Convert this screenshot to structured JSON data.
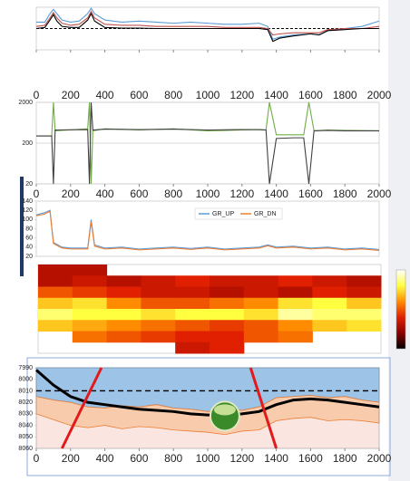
{
  "chart_data": [
    {
      "type": "line",
      "x": [
        0,
        50,
        80,
        100,
        120,
        150,
        200,
        250,
        300,
        320,
        340,
        400,
        500,
        600,
        700,
        800,
        900,
        1000,
        1100,
        1200,
        1300,
        1350,
        1380,
        1420,
        1500,
        1600,
        1650,
        1700,
        1800,
        1900,
        2000
      ],
      "series": [
        {
          "color": "#5b9bd5",
          "values": [
            0.3,
            0.3,
            0.7,
            0.9,
            0.7,
            0.4,
            0.3,
            0.35,
            0.7,
            0.95,
            0.7,
            0.4,
            0.3,
            0.35,
            0.3,
            0.25,
            0.3,
            0.25,
            0.2,
            0.2,
            0.25,
            0.1,
            -0.5,
            -0.4,
            -0.3,
            -0.25,
            -0.3,
            -0.1,
            0.0,
            0.1,
            0.35
          ]
        },
        {
          "color": "#c0504d",
          "values": [
            0.1,
            0.15,
            0.5,
            0.75,
            0.5,
            0.25,
            0.15,
            0.2,
            0.5,
            0.8,
            0.5,
            0.2,
            0.15,
            0.15,
            0.1,
            0.1,
            0.1,
            0.1,
            0.05,
            0.05,
            0.05,
            0.0,
            -0.3,
            -0.25,
            -0.2,
            -0.2,
            -0.2,
            -0.05,
            0.0,
            0.0,
            0.1
          ]
        },
        {
          "color": "#000000",
          "values": [
            0.0,
            0.05,
            0.4,
            0.65,
            0.35,
            0.1,
            0.05,
            0.05,
            0.4,
            0.7,
            0.35,
            0.05,
            0.02,
            0.02,
            0,
            0,
            0,
            0,
            0,
            0,
            0,
            -0.05,
            -0.6,
            -0.45,
            -0.35,
            -0.25,
            -0.3,
            -0.1,
            -0.05,
            0,
            0
          ]
        }
      ],
      "hline": 0,
      "xlim": [
        0,
        2000
      ],
      "ylim": [
        -1,
        1
      ],
      "xticks": [
        0,
        200,
        400,
        600,
        800,
        1000,
        1200,
        1400,
        1600,
        1800,
        2000
      ]
    },
    {
      "type": "line",
      "log_scale": true,
      "grid": true,
      "x": [
        0,
        90,
        100,
        110,
        300,
        310,
        320,
        330,
        400,
        600,
        800,
        1000,
        1200,
        1300,
        1340,
        1360,
        1400,
        1500,
        1560,
        1590,
        1620,
        1700,
        1800,
        2000
      ],
      "series": [
        {
          "color": "#70ad47",
          "values": [
            300,
            300,
            2000,
            400,
            450,
            2000,
            20,
            400,
            450,
            420,
            450,
            400,
            420,
            430,
            420,
            2000,
            320,
            320,
            320,
            2000,
            400,
            420,
            410,
            400
          ]
        },
        {
          "color": "#404040",
          "values": [
            300,
            300,
            20,
            420,
            430,
            20,
            2000,
            420,
            440,
            430,
            440,
            420,
            430,
            430,
            420,
            20,
            260,
            270,
            270,
            20,
            400,
            410,
            400,
            400
          ]
        }
      ],
      "xlim": [
        0,
        2000
      ],
      "ylim": [
        20,
        2000
      ],
      "yticks": [
        20,
        200,
        2000
      ],
      "xticks": [
        0,
        200,
        400,
        600,
        800,
        1000,
        1200,
        1400,
        1600,
        1800,
        2000
      ]
    },
    {
      "type": "line",
      "legend": "top",
      "x": [
        0,
        50,
        80,
        100,
        150,
        200,
        300,
        320,
        340,
        400,
        500,
        600,
        700,
        800,
        900,
        1000,
        1100,
        1200,
        1300,
        1350,
        1400,
        1500,
        1600,
        1700,
        1800,
        1900,
        2000
      ],
      "series": [
        {
          "name": "GR_UP",
          "color": "#5b9bd5",
          "values": [
            110,
            115,
            120,
            50,
            40,
            38,
            38,
            100,
            45,
            38,
            40,
            36,
            38,
            40,
            37,
            40,
            36,
            38,
            40,
            45,
            40,
            42,
            38,
            40,
            36,
            38,
            35
          ]
        },
        {
          "name": "GR_DN",
          "color": "#ed7d31",
          "values": [
            108,
            112,
            118,
            48,
            38,
            36,
            36,
            95,
            42,
            36,
            38,
            34,
            36,
            38,
            35,
            38,
            34,
            36,
            38,
            43,
            38,
            40,
            36,
            38,
            34,
            36,
            33
          ]
        }
      ],
      "xlim": [
        0,
        2000
      ],
      "ylim": [
        20,
        140
      ],
      "yticks": [
        20,
        40,
        60,
        80,
        100,
        120,
        140
      ]
    },
    {
      "type": "heatmap",
      "colors": [
        "#000000",
        "#8b0000",
        "#e02000",
        "#ff8c00",
        "#ffff40",
        "#ffffff"
      ],
      "values": [
        [
          0.3,
          0.3,
          null,
          null,
          null,
          null,
          null,
          null,
          null,
          null
        ],
        [
          0.3,
          0.35,
          0.3,
          0.35,
          0.4,
          0.35,
          0.35,
          0.4,
          0.35,
          0.3
        ],
        [
          0.5,
          0.45,
          0.4,
          0.35,
          0.35,
          0.3,
          0.35,
          0.3,
          0.4,
          0.35
        ],
        [
          0.7,
          0.75,
          0.6,
          0.5,
          0.5,
          0.55,
          0.6,
          0.75,
          0.8,
          0.7
        ],
        [
          0.85,
          0.8,
          0.8,
          0.75,
          0.8,
          0.8,
          0.75,
          0.9,
          0.85,
          0.85
        ],
        [
          0.7,
          0.65,
          0.6,
          0.55,
          0.5,
          0.45,
          0.5,
          0.6,
          0.7,
          0.75
        ],
        [
          null,
          0.55,
          0.5,
          0.45,
          0.4,
          0.4,
          0.5,
          0.55,
          null,
          null
        ],
        [
          null,
          null,
          null,
          null,
          0.35,
          0.4,
          null,
          null,
          null,
          null
        ]
      ]
    },
    {
      "type": "depth",
      "y_inverted": true,
      "x": [
        0,
        100,
        200,
        300,
        400,
        500,
        600,
        700,
        800,
        900,
        1000,
        1100,
        1200,
        1300,
        1400,
        1500,
        1600,
        1700,
        1800,
        1900,
        2000
      ],
      "series": [
        {
          "color": "#000000",
          "values": [
            7992,
            8005,
            8015,
            8020,
            8022,
            8024,
            8026,
            8027,
            8028,
            8030,
            8031,
            8031,
            8030,
            8028,
            8022,
            8018,
            8017,
            8018,
            8020,
            8022,
            8024
          ]
        },
        {
          "color": "#9dc3e6",
          "values": [
            8015,
            8018,
            8020,
            8024,
            8025,
            8023,
            8024,
            8022,
            8025,
            8026,
            8028,
            8026,
            8027,
            8024,
            8016,
            8015,
            8014,
            8016,
            8015,
            8018,
            8020
          ]
        },
        {
          "color": "#f8cbad",
          "values": [
            8030,
            8035,
            8040,
            8042,
            8040,
            8043,
            8041,
            8042,
            8044,
            8045,
            8046,
            8048,
            8045,
            8044,
            8036,
            8034,
            8033,
            8036,
            8035,
            8036,
            8038
          ]
        }
      ],
      "hline": 8010,
      "segments": [
        [
          [
            150,
            8060
          ],
          [
            380,
            7990
          ]
        ],
        [
          [
            1250,
            7990
          ],
          [
            1400,
            8060
          ]
        ]
      ],
      "marker": [
        1100,
        8032
      ],
      "xlim": [
        0,
        2000
      ],
      "ylim": [
        7990,
        8060
      ],
      "yticks": [
        7990,
        8000,
        8010,
        8020,
        8030,
        8040,
        8050,
        8060
      ],
      "xticks": [
        0,
        200,
        400,
        600,
        800,
        1000,
        1200,
        1400,
        1600,
        1800,
        2000
      ]
    }
  ]
}
